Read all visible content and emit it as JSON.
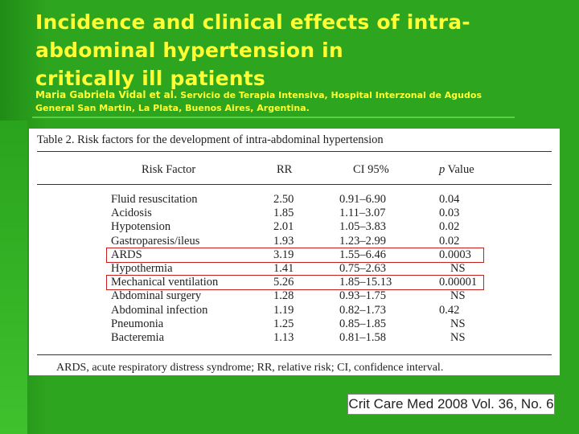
{
  "slide": {
    "title_lines": [
      "Incidence and clinical effects of intra-",
      "abdominal hypertension in",
      "critically ill patients"
    ],
    "author": "Maria Gabriela Vidal et al.",
    "affiliation_line1": "Servicio de Terapia Intensiva, Hospital Interzonal de Agudos",
    "affiliation_line2": "General San Martin, La Plata, Buenos Aires, Argentina."
  },
  "table": {
    "caption": "Table 2.  Risk factors for the development of intra-abdominal hypertension",
    "headers": {
      "factor": "Risk Factor",
      "rr": "RR",
      "ci": "CI 95%",
      "p_italic": "p",
      "p_rest": " Value"
    },
    "rows": [
      {
        "factor": "Fluid resuscitation",
        "rr": "2.50",
        "ci": "0.91–6.90",
        "p": "0.04"
      },
      {
        "factor": "Acidosis",
        "rr": "1.85",
        "ci": "1.11–3.07",
        "p": "0.03"
      },
      {
        "factor": "Hypotension",
        "rr": "2.01",
        "ci": "1.05–3.83",
        "p": "0.02"
      },
      {
        "factor": "Gastroparesis/ileus",
        "rr": "1.93",
        "ci": "1.23–2.99",
        "p": "0.02"
      },
      {
        "factor": "ARDS",
        "rr": "3.19",
        "ci": "1.55–6.46",
        "p": "0.0003"
      },
      {
        "factor": "Hypothermia",
        "rr": "1.41",
        "ci": "0.75–2.63",
        "p": "NS"
      },
      {
        "factor": "Mechanical ventilation",
        "rr": "5.26",
        "ci": "1.85–15.13",
        "p": "0.00001"
      },
      {
        "factor": "Abdominal surgery",
        "rr": "1.28",
        "ci": "0.93–1.75",
        "p": "NS"
      },
      {
        "factor": "Abdominal infection",
        "rr": "1.19",
        "ci": "0.82–1.73",
        "p": "0.42"
      },
      {
        "factor": "Pneumonia",
        "rr": "1.25",
        "ci": "0.85–1.85",
        "p": "NS"
      },
      {
        "factor": "Bacteremia",
        "rr": "1.13",
        "ci": "0.81–1.58",
        "p": "NS"
      }
    ],
    "highlighted_rows": [
      "ARDS",
      "Mechanical ventilation"
    ],
    "highlight_color": "#c81e1e",
    "footnote": "ARDS, acute respiratory distress syndrome; RR, relative risk; CI, confidence interval."
  },
  "citation": "Crit Care Med 2008 Vol. 36, No. 6",
  "colors": {
    "background": "#2ea51f",
    "title_text": "#ffff33"
  }
}
